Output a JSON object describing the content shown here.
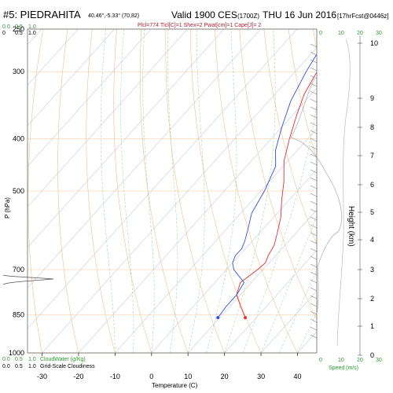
{
  "header": {
    "station": "#5: PIEDRAHITA",
    "coords": "40.46°,-5.33° (70,82)",
    "valid": "Valid 1900 CES",
    "utc": "(1700Z)",
    "date": "THU 16 Jun 2016",
    "fcst": "[17hrFcst@0446z]",
    "indices": "Plcl=774 Tlcl[C]=1 Shex=2 Pwat[cm]=1 Cape[J]= 2"
  },
  "chart_data": {
    "type": "line",
    "title": "#5: PIEDRAHITA",
    "xlabel": "Temperature (C)",
    "ylabel": "P (hPa)",
    "y2label": "Height (km)",
    "xlim": [
      -35,
      45
    ],
    "ylim": [
      1000,
      250
    ],
    "x_ticks": [
      -30,
      -20,
      -10,
      0,
      10,
      20,
      30,
      40
    ],
    "p_ticks": [
      1000,
      850,
      700,
      500,
      400,
      300,
      250
    ],
    "height_ticks": [
      0,
      1,
      2,
      3,
      4,
      5,
      6,
      7,
      8,
      9,
      10
    ],
    "series": [
      {
        "name": "Temperature",
        "color": "#e03030",
        "points": [
          [
            17,
            860
          ],
          [
            13,
            820
          ],
          [
            9,
            780
          ],
          [
            7,
            740
          ],
          [
            8.5,
            700
          ],
          [
            9,
            680
          ],
          [
            8,
            660
          ],
          [
            7,
            630
          ],
          [
            5,
            600
          ],
          [
            2,
            560
          ],
          [
            -2,
            520
          ],
          [
            -6,
            480
          ],
          [
            -11,
            440
          ],
          [
            -15,
            400
          ],
          [
            -19,
            360
          ],
          [
            -22,
            330
          ],
          [
            -24,
            300
          ],
          [
            -24,
            280
          ],
          [
            -23,
            265
          ],
          [
            -21,
            250
          ]
        ]
      },
      {
        "name": "Dewpoint",
        "color": "#3050e0",
        "points": [
          [
            9.5,
            860
          ],
          [
            9,
            820
          ],
          [
            9,
            780
          ],
          [
            8,
            740
          ],
          [
            2,
            700
          ],
          [
            1,
            690
          ],
          [
            0,
            680
          ],
          [
            -1,
            660
          ],
          [
            -1,
            640
          ],
          [
            -2,
            620
          ],
          [
            -4,
            590
          ],
          [
            -7,
            550
          ],
          [
            -9,
            500
          ],
          [
            -12,
            450
          ],
          [
            -16,
            420
          ],
          [
            -20,
            380
          ],
          [
            -24,
            340
          ],
          [
            -27,
            300
          ],
          [
            -29,
            270
          ],
          [
            -31,
            250
          ]
        ]
      }
    ],
    "cloud_axis": {
      "top_labels": [
        "0.0",
        "0.5",
        "1.0"
      ],
      "top_labels2": [
        "0",
        "0.5",
        "1.0"
      ],
      "bottom_labels": [
        "0.0",
        "0.5",
        "1.0"
      ],
      "bottom_labels2": [
        "0.0",
        "0.5",
        "1.0"
      ],
      "cloud_water_label": "CloudWater (g/Kg)",
      "cloudiness_label": "Grid-Scale Cloudiness"
    },
    "speed_axis": {
      "ticks": [
        "0",
        "10",
        "20",
        "30"
      ],
      "label": "Speed (m/s)"
    }
  },
  "colors": {
    "isotherm": "#9aa0d0",
    "dry_adiabat": "#f4b070",
    "moist_adiabat": "#8fd08f",
    "mixing_ratio": "#9ad09a",
    "grid": "#bdbdbd",
    "green_text": "#2a9a2a",
    "red_text": "#b02030",
    "speed": "#2a9a2a"
  }
}
